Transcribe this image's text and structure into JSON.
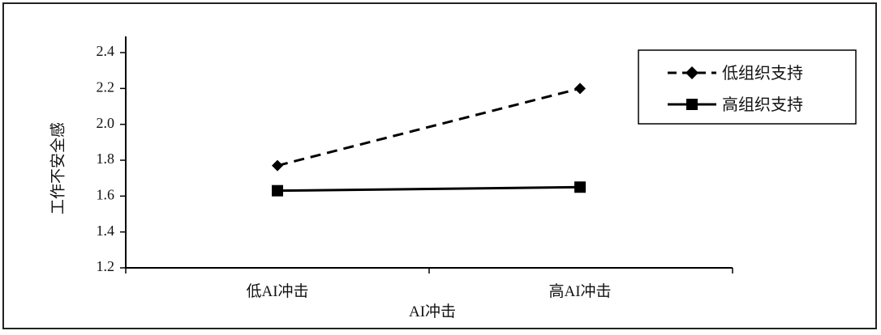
{
  "chart_data": {
    "type": "line",
    "title": "",
    "xlabel": "AI冲击",
    "ylabel": "工作不安全感",
    "categories": [
      "低AI冲击",
      "高AI冲击"
    ],
    "ylim": [
      1.2,
      2.4
    ],
    "yticks": [
      "1.2",
      "1.4",
      "1.6",
      "1.8",
      "2.0",
      "2.2",
      "2.4"
    ],
    "grid": false,
    "legend_position": "top-right",
    "series": [
      {
        "name": "低组织支持",
        "values": [
          1.77,
          2.2
        ],
        "line_style": "dashed",
        "marker": "diamond",
        "color": "#000000"
      },
      {
        "name": "高组织支持",
        "values": [
          1.63,
          1.65
        ],
        "line_style": "solid",
        "marker": "square",
        "color": "#000000"
      }
    ]
  }
}
